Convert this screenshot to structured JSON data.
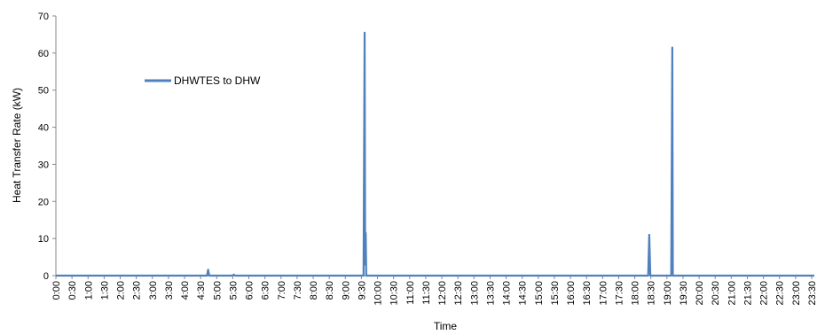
{
  "chart_data": {
    "type": "line",
    "title": "",
    "xlabel": "Time",
    "ylabel": "Heat Transfer Rate  (kW)",
    "ylim": [
      0,
      70
    ],
    "yticks": [
      0,
      10,
      20,
      30,
      40,
      50,
      60,
      70
    ],
    "xlim_minutes": [
      0,
      1415
    ],
    "xtick_labels": [
      "0:00",
      "0:30",
      "1:00",
      "1:30",
      "2:00",
      "2:30",
      "3:00",
      "3:30",
      "4:00",
      "4:30",
      "5:00",
      "5:30",
      "6:00",
      "6:30",
      "7:00",
      "7:30",
      "8:00",
      "8:30",
      "9:00",
      "9:30",
      "10:00",
      "10:30",
      "11:00",
      "11:30",
      "12:00",
      "12:30",
      "13:00",
      "13:30",
      "14:00",
      "14:30",
      "15:00",
      "15:30",
      "16:00",
      "16:30",
      "17:00",
      "17:30",
      "18:00",
      "18:30",
      "19:00",
      "19:30",
      "20:00",
      "20:30",
      "21:00",
      "21:30",
      "22:00",
      "22:30",
      "23:00",
      "23:30"
    ],
    "grid": false,
    "legend_position": "upper-left",
    "series": [
      {
        "name": "DHWTES to DHW",
        "color": "#4F81BD",
        "points": [
          [
            "0:00",
            0
          ],
          [
            "4:42",
            0
          ],
          [
            "4:44",
            1.6
          ],
          [
            "4:46",
            0
          ],
          [
            "5:30",
            0
          ],
          [
            "5:32",
            0.3
          ],
          [
            "5:34",
            0
          ],
          [
            "9:34",
            0
          ],
          [
            "9:36",
            65.5
          ],
          [
            "9:37",
            3
          ],
          [
            "9:38",
            11.5
          ],
          [
            "9:39",
            0
          ],
          [
            "18:25",
            0
          ],
          [
            "18:27",
            11
          ],
          [
            "18:29",
            0
          ],
          [
            "19:08",
            0
          ],
          [
            "19:10",
            61.5
          ],
          [
            "19:11",
            0
          ],
          [
            "23:35",
            0
          ]
        ]
      }
    ]
  }
}
